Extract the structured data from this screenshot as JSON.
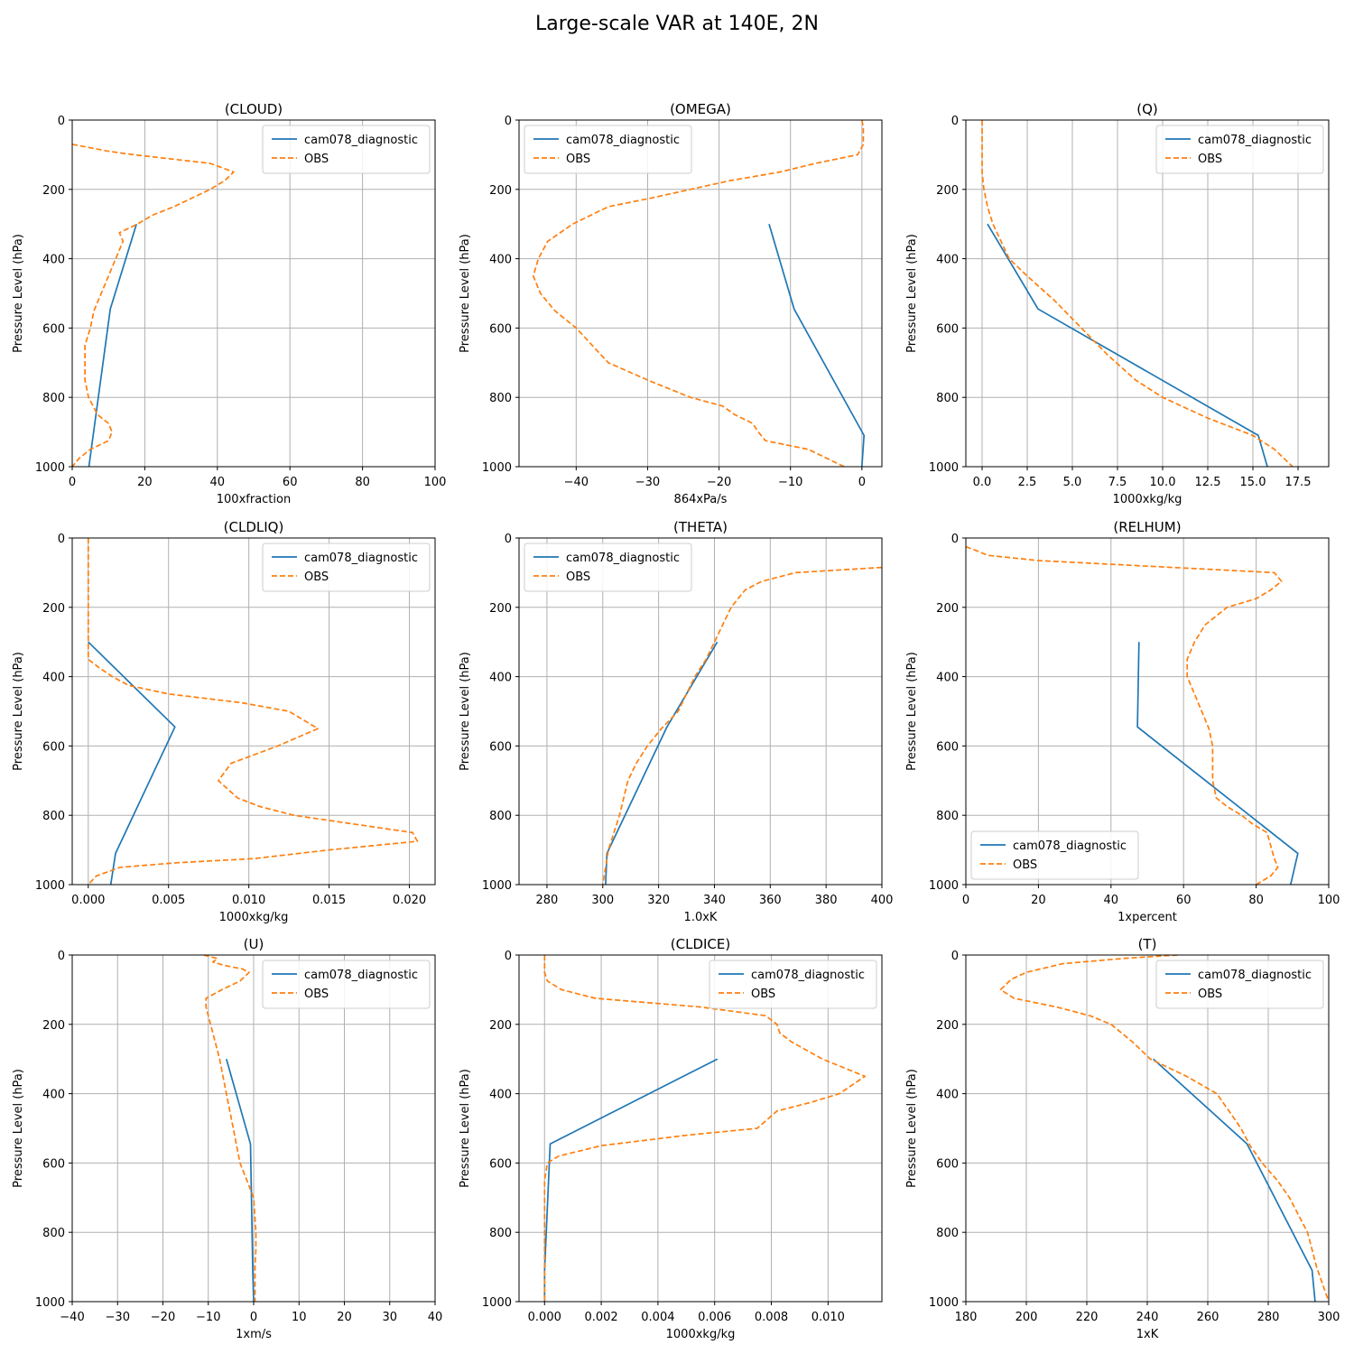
{
  "suptitle": "Large-scale VAR at 140E, 2N",
  "colors": {
    "model": "#1f77b4",
    "obs": "#ff7f0e",
    "grid": "#b0b0b0",
    "axes": "#000000"
  },
  "chart_data": [
    {
      "type": "line",
      "title": "(CLOUD)",
      "xlabel": "100xfraction",
      "ylabel": "Pressure Level (hPa)",
      "xlim": [
        0,
        100
      ],
      "ylim": [
        1000,
        0
      ],
      "xticks": [
        0,
        20,
        40,
        60,
        80,
        100
      ],
      "xtick_labels": [
        "0",
        "20",
        "40",
        "60",
        "80",
        "100"
      ],
      "yticks": [
        0,
        200,
        400,
        600,
        800,
        1000
      ],
      "ytick_labels": [
        "0",
        "200",
        "400",
        "600",
        "800",
        "1000"
      ],
      "grid": true,
      "legend": "upper right",
      "series": [
        {
          "name": "cam078_diagnostic",
          "style": "solid",
          "x": [
            17.7,
            10.5,
            4.6
          ],
          "y": [
            300,
            545,
            1000
          ]
        },
        {
          "name": "OBS",
          "style": "dashed",
          "x": [
            0,
            5,
            10,
            17,
            38,
            44.5,
            42,
            38,
            33,
            28,
            22,
            18,
            13,
            14,
            12,
            10,
            8,
            6,
            5,
            3.5,
            3.5,
            4.5,
            7,
            10,
            11,
            10,
            5,
            2,
            0
          ],
          "y": [
            70,
            80,
            90,
            100,
            125,
            150,
            175,
            200,
            225,
            250,
            275,
            300,
            325,
            350,
            400,
            450,
            500,
            550,
            600,
            650,
            750,
            800,
            850,
            875,
            900,
            925,
            950,
            975,
            1000
          ]
        }
      ]
    },
    {
      "type": "line",
      "title": "(OMEGA)",
      "xlabel": "864xPa/s",
      "ylabel": "Pressure Level (hPa)",
      "xlim": [
        -48,
        2.8
      ],
      "ylim": [
        1000,
        0
      ],
      "xticks": [
        -40,
        -30,
        -20,
        -10,
        0
      ],
      "xtick_labels": [
        "−40",
        "−30",
        "−20",
        "−10",
        "0"
      ],
      "yticks": [
        0,
        200,
        400,
        600,
        800,
        1000
      ],
      "ytick_labels": [
        "0",
        "200",
        "400",
        "600",
        "800",
        "1000"
      ],
      "grid": true,
      "legend": "upper left",
      "series": [
        {
          "name": "cam078_diagnostic",
          "style": "solid",
          "x": [
            -13,
            -9.5,
            0.3,
            0
          ],
          "y": [
            300,
            545,
            910,
            1000
          ]
        },
        {
          "name": "OBS",
          "style": "dashed",
          "x": [
            0,
            0.2,
            0.2,
            -0.6,
            -6.5,
            -11.5,
            -18.5,
            -24,
            -29.5,
            -35.5,
            -40.5,
            -44,
            -45.3,
            -46,
            -45,
            -43,
            -40,
            -35.5,
            -30,
            -24,
            -19.5,
            -17.8,
            -15.3,
            -14.5,
            -13.5,
            -7.5,
            -2.5
          ],
          "y": [
            0,
            20,
            70,
            100,
            125,
            150,
            175,
            200,
            225,
            250,
            300,
            350,
            400,
            450,
            500,
            550,
            600,
            700,
            750,
            800,
            825,
            850,
            875,
            900,
            925,
            950,
            1000
          ]
        }
      ]
    },
    {
      "type": "line",
      "title": "(Q)",
      "xlabel": "1000xkg/kg",
      "ylabel": "Pressure Level (hPa)",
      "xlim": [
        -0.9,
        19.2
      ],
      "ylim": [
        1000,
        0
      ],
      "xticks": [
        0,
        2.5,
        5,
        7.5,
        10,
        12.5,
        15,
        17.5
      ],
      "xtick_labels": [
        "0.0",
        "2.5",
        "5.0",
        "7.5",
        "10.0",
        "12.5",
        "15.0",
        "17.5"
      ],
      "yticks": [
        0,
        200,
        400,
        600,
        800,
        1000
      ],
      "ytick_labels": [
        "0",
        "200",
        "400",
        "600",
        "800",
        "1000"
      ],
      "grid": true,
      "legend": "upper right",
      "series": [
        {
          "name": "cam078_diagnostic",
          "style": "solid",
          "x": [
            0.3,
            3.1,
            15.3,
            15.8
          ],
          "y": [
            300,
            545,
            910,
            1000
          ]
        },
        {
          "name": "OBS",
          "style": "dashed",
          "x": [
            0,
            0,
            0.1,
            0.3,
            0.6,
            1.5,
            2.5,
            4.0,
            5.5,
            7.0,
            8.5,
            10.0,
            12.5,
            15.0,
            16.2,
            17.2
          ],
          "y": [
            0,
            150,
            200,
            250,
            300,
            400,
            450,
            520,
            600,
            680,
            750,
            800,
            860,
            910,
            950,
            1000
          ]
        }
      ]
    },
    {
      "type": "line",
      "title": "(CLDLIQ)",
      "xlabel": "1000xkg/kg",
      "ylabel": "Pressure Level (hPa)",
      "xlim": [
        -0.001,
        0.0216
      ],
      "ylim": [
        1000,
        0
      ],
      "xticks": [
        0,
        0.005,
        0.01,
        0.015,
        0.02
      ],
      "xtick_labels": [
        "0.000",
        "0.005",
        "0.010",
        "0.015",
        "0.020"
      ],
      "yticks": [
        0,
        200,
        400,
        600,
        800,
        1000
      ],
      "ytick_labels": [
        "0",
        "200",
        "400",
        "600",
        "800",
        "1000"
      ],
      "grid": true,
      "legend": "upper right",
      "series": [
        {
          "name": "cam078_diagnostic",
          "style": "solid",
          "x": [
            0,
            0.0054,
            0.0017,
            0.0014
          ],
          "y": [
            300,
            545,
            910,
            1000
          ]
        },
        {
          "name": "OBS",
          "style": "dashed",
          "x": [
            0,
            0,
            0,
            0.0007,
            0.0015,
            0.0025,
            0.005,
            0.0095,
            0.0125,
            0.0143,
            0.0118,
            0.0089,
            0.0081,
            0.0093,
            0.0107,
            0.0128,
            0.0202,
            0.0205,
            0.015,
            0.0103,
            0.0055,
            0.002,
            0.0005,
            0
          ],
          "y": [
            0,
            300,
            350,
            375,
            400,
            425,
            450,
            475,
            500,
            550,
            600,
            650,
            700,
            750,
            775,
            800,
            850,
            875,
            900,
            925,
            937,
            950,
            975,
            1000
          ]
        }
      ]
    },
    {
      "type": "line",
      "title": "(THETA)",
      "xlabel": "1.0xK",
      "ylabel": "Pressure Level (hPa)",
      "xlim": [
        270,
        400
      ],
      "ylim": [
        1000,
        0
      ],
      "xticks": [
        280,
        300,
        320,
        340,
        360,
        380,
        400
      ],
      "xtick_labels": [
        "280",
        "300",
        "320",
        "340",
        "360",
        "380",
        "400"
      ],
      "yticks": [
        0,
        200,
        400,
        600,
        800,
        1000
      ],
      "ytick_labels": [
        "0",
        "200",
        "400",
        "600",
        "800",
        "1000"
      ],
      "grid": true,
      "legend": "upper left",
      "series": [
        {
          "name": "cam078_diagnostic",
          "style": "solid",
          "x": [
            341,
            323,
            301.5,
            301
          ],
          "y": [
            300,
            545,
            910,
            1000
          ]
        },
        {
          "name": "OBS",
          "style": "dashed",
          "x": [
            400,
            369,
            357,
            351,
            348.5,
            346,
            343,
            340,
            337,
            333,
            330,
            327,
            321,
            316,
            312,
            309,
            306,
            304,
            302,
            300
          ],
          "y": [
            85,
            100,
            125,
            150,
            175,
            200,
            250,
            300,
            350,
            400,
            450,
            500,
            550,
            600,
            650,
            700,
            800,
            850,
            900,
            1000
          ]
        }
      ]
    },
    {
      "type": "line",
      "title": "(RELHUM)",
      "xlabel": "1xpercent",
      "ylabel": "Pressure Level (hPa)",
      "xlim": [
        0,
        100
      ],
      "ylim": [
        1000,
        0
      ],
      "xticks": [
        0,
        20,
        40,
        60,
        80,
        100
      ],
      "xtick_labels": [
        "0",
        "20",
        "40",
        "60",
        "80",
        "100"
      ],
      "yticks": [
        0,
        200,
        400,
        600,
        800,
        1000
      ],
      "ytick_labels": [
        "0",
        "200",
        "400",
        "600",
        "800",
        "1000"
      ],
      "grid": true,
      "legend": "lower left",
      "series": [
        {
          "name": "cam078_diagnostic",
          "style": "solid",
          "x": [
            47.7,
            47.3,
            91.5,
            89.5
          ],
          "y": [
            300,
            545,
            910,
            1000
          ]
        },
        {
          "name": "OBS",
          "style": "dashed",
          "x": [
            0,
            3,
            6,
            20,
            85,
            87,
            84,
            80,
            72,
            69,
            66,
            63,
            61,
            61,
            63,
            65,
            67,
            68,
            68,
            68,
            69,
            72,
            76,
            79,
            83,
            85,
            86,
            84,
            80
          ],
          "y": [
            25,
            37,
            50,
            65,
            100,
            125,
            150,
            175,
            200,
            225,
            250,
            300,
            350,
            400,
            450,
            500,
            550,
            600,
            650,
            700,
            750,
            775,
            800,
            825,
            850,
            925,
            950,
            975,
            1000
          ]
        }
      ]
    },
    {
      "type": "line",
      "title": "(U)",
      "xlabel": "1xm/s",
      "ylabel": "Pressure Level (hPa)",
      "xlim": [
        -40,
        40
      ],
      "ylim": [
        1000,
        0
      ],
      "xticks": [
        -40,
        -30,
        -20,
        -10,
        0,
        10,
        20,
        30,
        40
      ],
      "xtick_labels": [
        "−40",
        "−30",
        "−20",
        "−10",
        "0",
        "10",
        "20",
        "30",
        "40"
      ],
      "yticks": [
        0,
        200,
        400,
        600,
        800,
        1000
      ],
      "ytick_labels": [
        "0",
        "200",
        "400",
        "600",
        "800",
        "1000"
      ],
      "grid": true,
      "legend": "upper right",
      "series": [
        {
          "name": "cam078_diagnostic",
          "style": "solid",
          "x": [
            -6,
            -0.7,
            -0.2,
            0
          ],
          "y": [
            300,
            545,
            910,
            1000
          ]
        },
        {
          "name": "OBS",
          "style": "dashed",
          "x": [
            -11,
            -8,
            -9,
            -6.5,
            -2.5,
            -1,
            -3,
            -7,
            -10.5,
            -10.5,
            -9.5,
            -8.5,
            -7.5,
            -6,
            -4.5,
            -3,
            -1.5,
            0,
            0.5,
            0.5,
            0.3,
            0.3
          ],
          "y": [
            0,
            10,
            20,
            30,
            40,
            50,
            75,
            100,
            125,
            150,
            200,
            250,
            300,
            400,
            500,
            600,
            650,
            700,
            800,
            850,
            900,
            1000
          ]
        }
      ]
    },
    {
      "type": "line",
      "title": "(CLDICE)",
      "xlabel": "1000xkg/kg",
      "ylabel": "Pressure Level (hPa)",
      "xlim": [
        -0.0009,
        0.0119
      ],
      "ylim": [
        1000,
        0
      ],
      "xticks": [
        0,
        0.002,
        0.004,
        0.006,
        0.008,
        0.01
      ],
      "xtick_labels": [
        "0.000",
        "0.002",
        "0.004",
        "0.006",
        "0.008",
        "0.010"
      ],
      "yticks": [
        0,
        200,
        400,
        600,
        800,
        1000
      ],
      "ytick_labels": [
        "0",
        "200",
        "400",
        "600",
        "800",
        "1000"
      ],
      "grid": true,
      "legend": "upper right",
      "series": [
        {
          "name": "cam078_diagnostic",
          "style": "solid",
          "x": [
            0.0061,
            0.0002,
            0,
            0
          ],
          "y": [
            300,
            545,
            910,
            1000
          ]
        },
        {
          "name": "OBS",
          "style": "dashed",
          "x": [
            0,
            0,
            0.0001,
            0.0006,
            0.0018,
            0.0055,
            0.0078,
            0.0082,
            0.0083,
            0.0087,
            0.0098,
            0.0113,
            0.0104,
            0.0094,
            0.0082,
            0.0075,
            0.005,
            0.002,
            0.0005,
            0.0001,
            0,
            0,
            0
          ],
          "y": [
            0,
            50,
            75,
            100,
            125,
            150,
            175,
            200,
            225,
            250,
            300,
            350,
            400,
            425,
            450,
            500,
            520,
            550,
            580,
            600,
            650,
            800,
            1000
          ]
        }
      ]
    },
    {
      "type": "line",
      "title": "(T)",
      "xlabel": "1xK",
      "ylabel": "Pressure Level (hPa)",
      "xlim": [
        180,
        300
      ],
      "ylim": [
        1000,
        0
      ],
      "xticks": [
        180,
        200,
        220,
        240,
        260,
        280,
        300
      ],
      "xtick_labels": [
        "180",
        "200",
        "220",
        "240",
        "260",
        "280",
        "300"
      ],
      "yticks": [
        0,
        200,
        400,
        600,
        800,
        1000
      ],
      "ytick_labels": [
        "0",
        "200",
        "400",
        "600",
        "800",
        "1000"
      ],
      "grid": true,
      "legend": "upper right",
      "series": [
        {
          "name": "cam078_diagnostic",
          "style": "solid",
          "x": [
            242,
            273,
            294.5,
            295.5
          ],
          "y": [
            300,
            545,
            910,
            1000
          ]
        },
        {
          "name": "OBS",
          "style": "dashed",
          "x": [
            250,
            232,
            212,
            200,
            195,
            191.5,
            196,
            210,
            221,
            228,
            235,
            241,
            247,
            253,
            258,
            263,
            267,
            271,
            274,
            278,
            283,
            287,
            290,
            293,
            296,
            300
          ],
          "y": [
            0,
            10,
            25,
            50,
            70,
            100,
            125,
            150,
            175,
            200,
            250,
            300,
            325,
            350,
            375,
            400,
            450,
            500,
            550,
            600,
            650,
            700,
            750,
            800,
            900,
            1000
          ]
        }
      ]
    }
  ]
}
